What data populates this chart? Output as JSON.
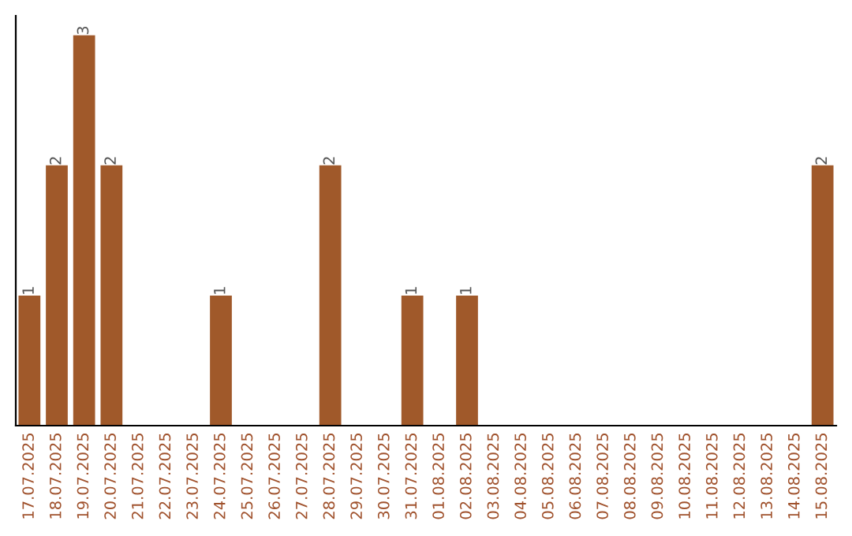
{
  "chart_data": {
    "type": "bar",
    "categories": [
      "17.07.2025",
      "18.07.2025",
      "19.07.2025",
      "20.07.2025",
      "21.07.2025",
      "22.07.2025",
      "23.07.2025",
      "24.07.2025",
      "25.07.2025",
      "26.07.2025",
      "27.07.2025",
      "28.07.2025",
      "29.07.2025",
      "30.07.2025",
      "31.07.2025",
      "01.08.2025",
      "02.08.2025",
      "03.08.2025",
      "04.08.2025",
      "05.08.2025",
      "06.08.2025",
      "07.08.2025",
      "08.08.2025",
      "09.08.2025",
      "10.08.2025",
      "11.08.2025",
      "12.08.2025",
      "13.08.2025",
      "14.08.2025",
      "15.08.2025"
    ],
    "values": [
      1,
      2,
      3,
      2,
      0,
      0,
      0,
      1,
      0,
      0,
      0,
      2,
      0,
      0,
      1,
      0,
      1,
      0,
      0,
      0,
      0,
      0,
      0,
      0,
      0,
      0,
      0,
      0,
      0,
      2
    ],
    "value_labels": [
      "1",
      "2",
      "3",
      "2",
      null,
      null,
      null,
      "1",
      null,
      null,
      null,
      "2",
      null,
      null,
      "1",
      null,
      "1",
      null,
      null,
      null,
      null,
      null,
      null,
      null,
      null,
      null,
      null,
      null,
      null,
      "2"
    ],
    "color": "#a0592a",
    "grid": false,
    "legend": false
  }
}
